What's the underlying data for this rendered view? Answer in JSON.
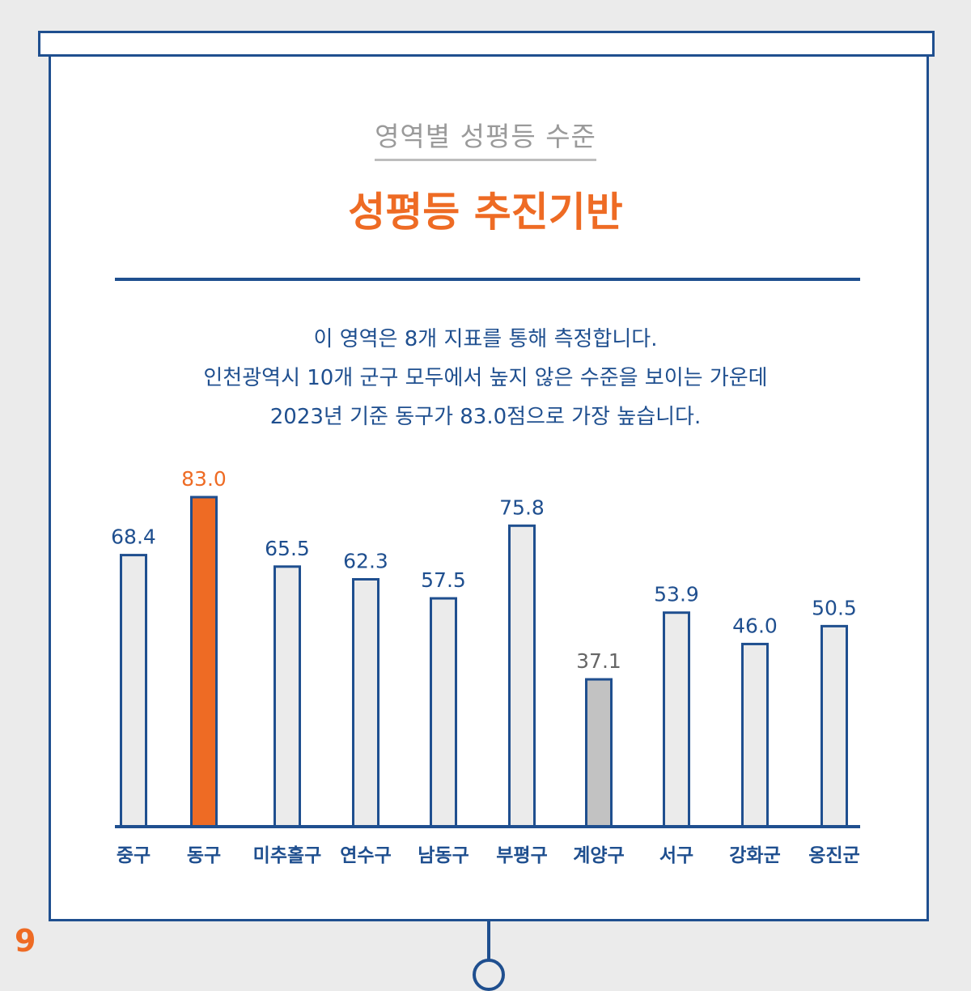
{
  "header": {
    "subtitle": "영역별 성평등 수준",
    "title": "성평등 추진기반"
  },
  "description": [
    "이 영역은 8개 지표를 통해 측정합니다.",
    "인천광역시 10개 군구 모두에서 높지 않은 수준을 보이는 가운데",
    "2023년 기준 동구가 83.0점으로 가장 높습니다."
  ],
  "page_number": "9",
  "colors": {
    "default_fill": "#ebebeb",
    "highlight_fill": "#ee6b24",
    "lowest_fill": "#c2c2c2",
    "outline": "#1f4f8f",
    "highlight_label": "#ee6b24",
    "lowest_label": "#666666"
  },
  "chart_data": {
    "type": "bar",
    "categories": [
      "중구",
      "동구",
      "미추홀구",
      "연수구",
      "남동구",
      "부평구",
      "계양구",
      "서구",
      "강화군",
      "옹진군"
    ],
    "values": [
      68.4,
      83.0,
      65.5,
      62.3,
      57.5,
      75.8,
      37.1,
      53.9,
      46.0,
      50.5
    ],
    "value_labels": [
      "68.4",
      "83.0",
      "65.5",
      "62.3",
      "57.5",
      "75.8",
      "37.1",
      "53.9",
      "46.0",
      "50.5"
    ],
    "highlight": "동구",
    "lowest": "계양구",
    "ylim": [
      0,
      83.0
    ],
    "grid": false,
    "legend": "none"
  }
}
